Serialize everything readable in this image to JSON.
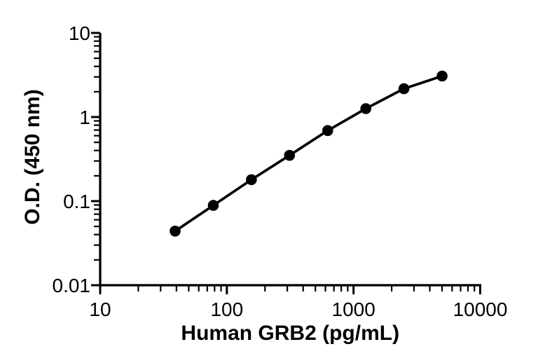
{
  "figure": {
    "background": "#ffffff",
    "ink_color": "#000000"
  },
  "chart_data": {
    "type": "line",
    "subtype": "scatter-with-connecting-line",
    "title": "",
    "xlabel": "Human GRB2 (pg/mL)",
    "ylabel": "O.D. (450 nm)",
    "x_scale": "log10",
    "y_scale": "log10",
    "xlim": [
      10,
      10000
    ],
    "ylim": [
      0.01,
      10
    ],
    "x_major_ticks": [
      {
        "value": 10,
        "label": "10"
      },
      {
        "value": 100,
        "label": "100"
      },
      {
        "value": 1000,
        "label": "1000"
      },
      {
        "value": 10000,
        "label": "10000"
      }
    ],
    "y_major_ticks": [
      {
        "value": 0.01,
        "label": "0.01"
      },
      {
        "value": 0.1,
        "label": "0.1"
      },
      {
        "value": 1,
        "label": "1"
      },
      {
        "value": 10,
        "label": "10"
      }
    ],
    "minor_ticks": "log-decade-2-to-9",
    "tick_direction": "outside",
    "grid": false,
    "legend": "none",
    "series": [
      {
        "name": "human-grb2-standard-curve",
        "marker": "filled-circle",
        "color": "#000000",
        "x": [
          39.06,
          78.13,
          156.25,
          312.5,
          625,
          1250,
          2500,
          5000
        ],
        "y": [
          0.044,
          0.089,
          0.18,
          0.35,
          0.69,
          1.26,
          2.17,
          3.07
        ]
      }
    ]
  }
}
